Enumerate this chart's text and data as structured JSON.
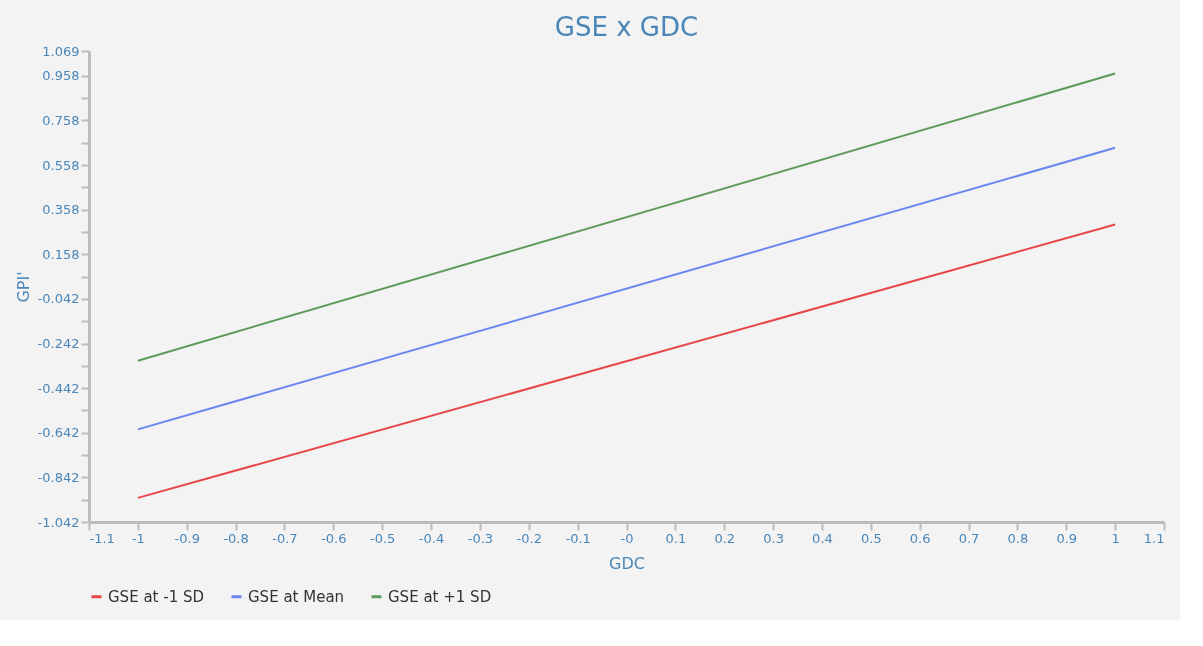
{
  "chart_data": {
    "type": "line",
    "title": "GSE x GDC",
    "xlabel": "GDC",
    "ylabel": "GPI'",
    "x": [
      -1,
      1
    ],
    "series": [
      {
        "name": "GSE at -1 SD",
        "color": "#e8464a",
        "values": [
          -0.934,
          0.291
        ]
      },
      {
        "name": "GSE at Mean",
        "color": "#6a86f0",
        "values": [
          -0.627,
          0.635
        ]
      },
      {
        "name": "GSE at +1 SD",
        "color": "#5e9a5a",
        "values": [
          -0.319,
          0.968
        ]
      }
    ],
    "xlim": [
      -1.1,
      1.1
    ],
    "xticks": [
      -1.1,
      -1,
      -0.9,
      -0.8,
      -0.7,
      -0.6,
      -0.5,
      -0.4,
      -0.3,
      -0.2,
      -0.1,
      {
        "value": 0,
        "label": "-0"
      },
      0.1,
      0.2,
      0.3,
      0.4,
      0.5,
      0.6,
      0.7,
      0.8,
      0.9,
      1,
      1.1
    ],
    "ylim": [
      -1.042,
      1.069
    ],
    "yticks": [
      -1.042,
      {
        "value": -0.942,
        "label": null
      },
      -0.842,
      {
        "value": -0.742,
        "label": null
      },
      -0.642,
      {
        "value": -0.542,
        "label": null
      },
      -0.442,
      {
        "value": -0.342,
        "label": null
      },
      -0.242,
      {
        "value": -0.142,
        "label": null
      },
      -0.042,
      {
        "value": 0.058,
        "label": null
      },
      0.158,
      {
        "value": 0.258,
        "label": null
      },
      0.358,
      {
        "value": 0.458,
        "label": null
      },
      0.558,
      {
        "value": 0.658,
        "label": null
      },
      0.758,
      {
        "value": 0.858,
        "label": null
      },
      0.958,
      1.069
    ],
    "grid": false,
    "legend": "bottom",
    "marker": "none",
    "line_style": "solid"
  }
}
